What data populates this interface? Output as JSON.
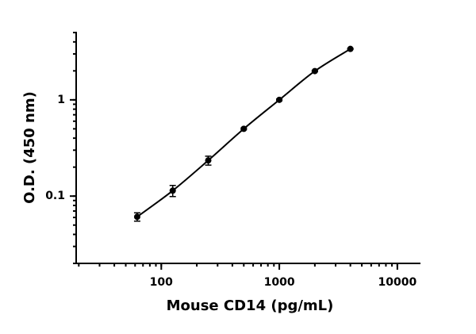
{
  "chart_data": {
    "type": "scatter",
    "x_label": "Mouse CD14 (pg/mL)",
    "y_label": "O.D. (450 nm)",
    "x": [
      62.5,
      125,
      250,
      500,
      1000,
      2000,
      4000
    ],
    "values": [
      0.061,
      0.114,
      0.235,
      0.5,
      1.0,
      1.99,
      3.38
    ],
    "errors": [
      0.006,
      0.015,
      0.025,
      0.01,
      0.02,
      0.03,
      0.04
    ],
    "color": "#000000",
    "xlim": [
      19,
      15700
    ],
    "ylim": [
      0.02,
      5.1
    ],
    "xticks": [
      100,
      1000,
      10000
    ],
    "yticks": [
      0.1,
      1
    ],
    "xscale": "log",
    "yscale": "log",
    "minor_ticks": true,
    "fit_line": true
  }
}
